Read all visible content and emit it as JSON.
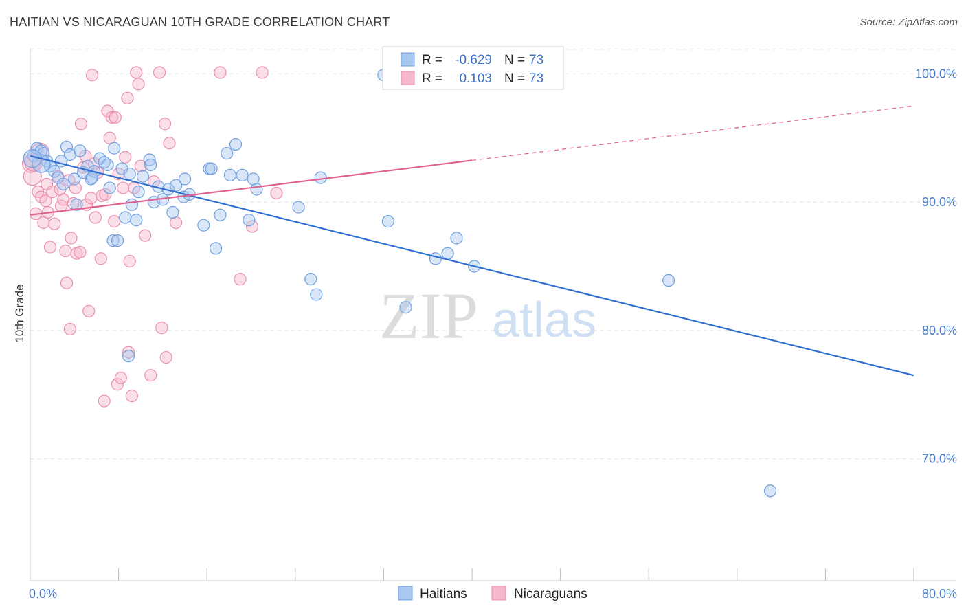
{
  "title": "HAITIAN VS NICARAGUAN 10TH GRADE CORRELATION CHART",
  "source": "Source: ZipAtlas.com",
  "watermark": {
    "zip": "ZIP",
    "atlas": "atlas"
  },
  "legend": {
    "entries": [
      {
        "r_label": "R =",
        "r_value": "-0.629",
        "n_label": "N =",
        "n_value": "73"
      },
      {
        "r_label": "R =",
        "r_value": "0.103",
        "n_label": "N =",
        "n_value": "73"
      }
    ]
  },
  "bottom_legend": [
    "Haitians",
    "Nicaraguans"
  ],
  "colors": {
    "haitian_fill": "#a9c8f0",
    "haitian_stroke": "#6f9fe0",
    "haitian_line": "#2f6fd0",
    "nicaraguan_fill": "#f6b8cc",
    "nicaraguan_stroke": "#ea8fae",
    "nicaraguan_line": "#e0608f",
    "tick_text": "#4a7cc9",
    "grid": "#e2e2e2"
  },
  "chart_data": {
    "type": "scatter",
    "title": "HAITIAN VS NICARAGUAN 10TH GRADE CORRELATION CHART",
    "xlabel": "",
    "ylabel": "10th Grade",
    "xlim": [
      0,
      80
    ],
    "ylim": [
      60.5,
      102.0
    ],
    "x_tick_labels": [
      {
        "value": 0,
        "label": "0.0%"
      },
      {
        "value": 80,
        "label": "80.0%"
      }
    ],
    "x_minor_ticks": [
      8,
      16,
      24,
      32,
      40,
      48,
      56,
      64,
      72,
      80
    ],
    "y_ticks": [
      {
        "value": 100,
        "label": "100.0%"
      },
      {
        "value": 90,
        "label": "90.0%"
      },
      {
        "value": 80,
        "label": "80.0%"
      },
      {
        "value": 70,
        "label": "70.0%"
      }
    ],
    "series": [
      {
        "name": "Haitians",
        "r": -0.629,
        "n": 73,
        "trend": {
          "x": [
            0,
            80
          ],
          "y": [
            93.6,
            76.5
          ],
          "dashed_from": null
        },
        "points": [
          [
            0.3,
            93.6
          ],
          [
            0.6,
            94.2
          ],
          [
            1.0,
            94.0
          ],
          [
            1.2,
            93.8
          ],
          [
            1.5,
            93.2
          ],
          [
            1.8,
            92.8
          ],
          [
            2.2,
            92.4
          ],
          [
            2.5,
            91.9
          ],
          [
            2.8,
            93.2
          ],
          [
            3.0,
            91.4
          ],
          [
            3.3,
            94.3
          ],
          [
            3.6,
            93.7
          ],
          [
            4.0,
            91.8
          ],
          [
            4.5,
            94.0
          ],
          [
            4.2,
            89.8
          ],
          [
            4.8,
            92.3
          ],
          [
            5.2,
            92.8
          ],
          [
            5.5,
            91.8
          ],
          [
            5.8,
            92.4
          ],
          [
            6.3,
            93.4
          ],
          [
            6.7,
            93.1
          ],
          [
            7.0,
            92.9
          ],
          [
            7.2,
            91.1
          ],
          [
            7.5,
            87.0
          ],
          [
            7.6,
            94.2
          ],
          [
            7.9,
            87.0
          ],
          [
            8.3,
            92.6
          ],
          [
            8.6,
            88.8
          ],
          [
            8.9,
            78.0
          ],
          [
            9.0,
            92.2
          ],
          [
            9.2,
            89.8
          ],
          [
            9.6,
            88.6
          ],
          [
            9.8,
            90.8
          ],
          [
            10.2,
            92.0
          ],
          [
            10.8,
            93.3
          ],
          [
            10.9,
            92.9
          ],
          [
            11.2,
            90.0
          ],
          [
            11.6,
            91.2
          ],
          [
            12.0,
            90.2
          ],
          [
            12.5,
            91.0
          ],
          [
            12.9,
            89.2
          ],
          [
            13.2,
            91.3
          ],
          [
            13.9,
            90.4
          ],
          [
            14.0,
            91.8
          ],
          [
            14.4,
            90.6
          ],
          [
            15.7,
            88.2
          ],
          [
            16.2,
            92.6
          ],
          [
            16.4,
            92.6
          ],
          [
            16.8,
            86.4
          ],
          [
            17.2,
            89.0
          ],
          [
            17.8,
            93.8
          ],
          [
            18.1,
            92.1
          ],
          [
            18.6,
            94.5
          ],
          [
            19.2,
            92.1
          ],
          [
            19.8,
            88.6
          ],
          [
            20.2,
            91.8
          ],
          [
            20.5,
            91.0
          ],
          [
            24.3,
            89.6
          ],
          [
            25.4,
            84.0
          ],
          [
            25.9,
            82.8
          ],
          [
            26.3,
            91.9
          ],
          [
            32.4,
            88.5
          ],
          [
            34.0,
            81.8
          ],
          [
            36.7,
            85.6
          ],
          [
            37.8,
            86.0
          ],
          [
            38.6,
            87.2
          ],
          [
            40.2,
            85.0
          ],
          [
            57.8,
            83.9
          ],
          [
            67.0,
            67.5
          ],
          [
            32.0,
            99.9
          ],
          [
            1.0,
            93.0
          ],
          [
            0.2,
            93.4
          ],
          [
            5.6,
            91.9
          ]
        ]
      },
      {
        "name": "Nicaraguans",
        "r": 0.103,
        "n": 73,
        "trend": {
          "x": [
            0,
            80
          ],
          "y": [
            89.0,
            97.5
          ],
          "dashed_from": 40
        },
        "points": [
          [
            0.1,
            93.0
          ],
          [
            0.2,
            92.0
          ],
          [
            0.5,
            89.1
          ],
          [
            0.7,
            90.8
          ],
          [
            1.0,
            90.4
          ],
          [
            1.2,
            88.4
          ],
          [
            1.5,
            91.4
          ],
          [
            1.6,
            89.2
          ],
          [
            1.8,
            86.5
          ],
          [
            2.0,
            90.8
          ],
          [
            2.2,
            88.3
          ],
          [
            2.5,
            92.0
          ],
          [
            2.8,
            89.7
          ],
          [
            3.0,
            90.2
          ],
          [
            3.2,
            86.2
          ],
          [
            3.3,
            83.7
          ],
          [
            3.5,
            91.7
          ],
          [
            3.6,
            80.1
          ],
          [
            3.9,
            89.9
          ],
          [
            4.2,
            86.0
          ],
          [
            4.5,
            86.1
          ],
          [
            4.6,
            96.1
          ],
          [
            4.8,
            92.7
          ],
          [
            5.0,
            93.6
          ],
          [
            5.1,
            89.8
          ],
          [
            5.3,
            81.5
          ],
          [
            5.5,
            90.3
          ],
          [
            5.6,
            99.9
          ],
          [
            5.9,
            88.8
          ],
          [
            6.1,
            92.3
          ],
          [
            6.4,
            85.6
          ],
          [
            6.5,
            90.5
          ],
          [
            6.7,
            74.5
          ],
          [
            7.0,
            97.1
          ],
          [
            7.2,
            95.0
          ],
          [
            7.4,
            96.6
          ],
          [
            7.6,
            88.5
          ],
          [
            7.9,
            75.8
          ],
          [
            8.2,
            76.3
          ],
          [
            8.4,
            91.1
          ],
          [
            8.6,
            93.5
          ],
          [
            8.8,
            98.1
          ],
          [
            8.9,
            78.3
          ],
          [
            9.0,
            85.4
          ],
          [
            9.2,
            74.9
          ],
          [
            9.4,
            91.1
          ],
          [
            9.6,
            100.1
          ],
          [
            9.8,
            99.2
          ],
          [
            10.0,
            92.8
          ],
          [
            10.4,
            87.4
          ],
          [
            10.9,
            76.5
          ],
          [
            11.2,
            91.6
          ],
          [
            11.7,
            100.1
          ],
          [
            11.9,
            80.2
          ],
          [
            12.3,
            77.9
          ],
          [
            12.6,
            94.6
          ],
          [
            13.2,
            88.4
          ],
          [
            17.2,
            100.1
          ],
          [
            19.0,
            84.0
          ],
          [
            20.1,
            88.1
          ],
          [
            21.0,
            100.1
          ],
          [
            22.3,
            90.7
          ],
          [
            2.7,
            91.0
          ],
          [
            4.1,
            91.1
          ],
          [
            6.8,
            90.6
          ],
          [
            7.7,
            96.6
          ],
          [
            5.8,
            93.0
          ],
          [
            0.3,
            93.1
          ],
          [
            0.9,
            93.9
          ],
          [
            1.4,
            90.1
          ],
          [
            3.7,
            87.2
          ],
          [
            12.2,
            96.1
          ],
          [
            8.0,
            92.2
          ]
        ]
      }
    ]
  }
}
